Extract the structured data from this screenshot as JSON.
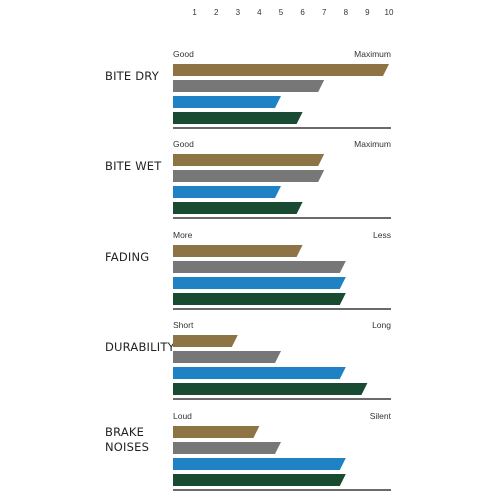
{
  "chart_data": {
    "type": "bar",
    "orientation": "horizontal",
    "scale": [
      1,
      2,
      3,
      4,
      5,
      6,
      7,
      8,
      9,
      10
    ],
    "xlim": [
      0,
      10
    ],
    "legend": "none",
    "grid": false,
    "series_colors": [
      "#8e7444",
      "#777777",
      "#1f82c4",
      "#194a32"
    ],
    "groups": [
      {
        "label_lines": [
          "BITE DRY"
        ],
        "low_label": "Good",
        "high_label": "Maximum",
        "values": [
          10,
          7,
          5,
          6
        ]
      },
      {
        "label_lines": [
          "BITE WET"
        ],
        "low_label": "Good",
        "high_label": "Maximum",
        "values": [
          7,
          7,
          5,
          6
        ]
      },
      {
        "label_lines": [
          "FADING"
        ],
        "low_label": "More",
        "high_label": "Less",
        "values": [
          6,
          8,
          8,
          8
        ]
      },
      {
        "label_lines": [
          "DURABILITY"
        ],
        "low_label": "Short",
        "high_label": "Long",
        "values": [
          3,
          5,
          8,
          9
        ]
      },
      {
        "label_lines": [
          "BRAKE",
          "NOISES"
        ],
        "low_label": "Loud",
        "high_label": "Silent",
        "values": [
          4,
          5,
          8,
          8
        ]
      }
    ]
  }
}
